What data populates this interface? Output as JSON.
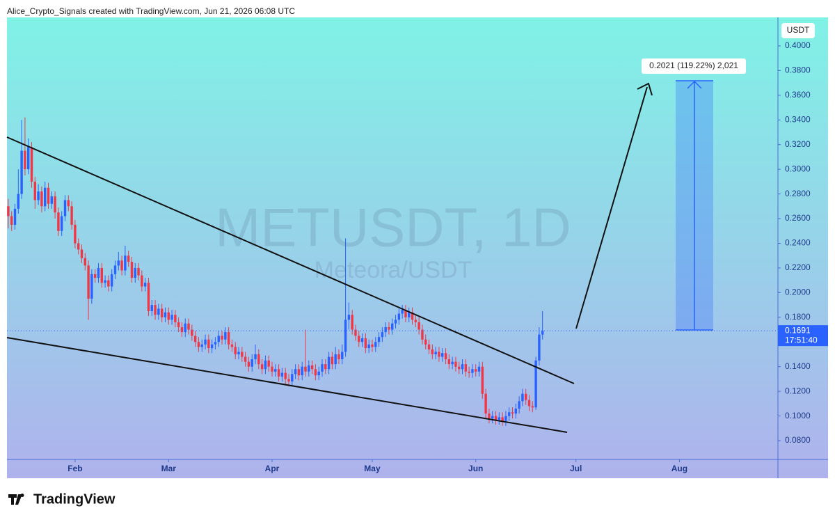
{
  "header": {
    "text": "Alice_Crypto_Signals created with TradingView.com, Jun 21, 2026 06:08 UTC"
  },
  "chart_data": {
    "type": "candlestick",
    "title": "METUSDT, 1D",
    "subtitle": "Meteora/USDT",
    "unit": "USDT",
    "x": [
      11,
      12,
      13,
      14,
      15,
      16,
      17,
      18,
      19,
      20,
      21,
      22,
      23,
      24,
      25,
      26,
      27,
      28,
      29,
      30,
      31,
      32,
      33,
      34,
      35,
      36,
      37,
      38,
      39,
      40,
      41,
      42,
      43,
      44,
      45,
      46,
      47,
      48,
      49,
      50,
      51,
      52,
      53,
      54,
      55,
      56,
      57,
      58,
      59,
      60,
      61,
      62,
      63,
      64,
      65,
      66,
      67,
      68,
      69,
      70,
      71,
      72,
      73,
      74,
      75,
      76,
      77,
      78,
      79,
      80,
      81,
      82,
      83,
      84,
      85,
      86,
      87,
      88,
      89,
      90,
      91,
      92,
      93,
      94,
      95,
      96,
      97,
      98,
      99,
      100,
      101,
      102,
      103,
      104,
      105,
      106,
      107,
      108,
      109,
      110,
      111,
      112,
      113,
      114,
      115,
      116,
      117,
      118,
      119,
      120,
      121,
      122,
      123,
      124,
      125,
      126,
      127,
      128,
      129,
      130,
      131,
      132,
      133,
      134,
      135,
      136,
      137,
      138,
      139,
      140,
      141,
      142,
      143,
      144,
      145,
      146,
      147,
      148,
      149,
      150,
      151,
      152,
      153,
      154,
      155,
      156,
      157,
      158,
      159,
      160,
      161,
      162,
      163,
      164,
      165,
      166,
      167,
      168,
      169,
      170,
      171
    ],
    "ohlc": [
      [
        0.27,
        0.276,
        0.252,
        0.262
      ],
      [
        0.262,
        0.266,
        0.25,
        0.255
      ],
      [
        0.255,
        0.272,
        0.251,
        0.268
      ],
      [
        0.268,
        0.3,
        0.264,
        0.28
      ],
      [
        0.28,
        0.34,
        0.276,
        0.315
      ],
      [
        0.315,
        0.342,
        0.295,
        0.3
      ],
      [
        0.3,
        0.325,
        0.296,
        0.318
      ],
      [
        0.318,
        0.322,
        0.285,
        0.29
      ],
      [
        0.29,
        0.294,
        0.268,
        0.275
      ],
      [
        0.275,
        0.288,
        0.271,
        0.282
      ],
      [
        0.282,
        0.286,
        0.265,
        0.27
      ],
      [
        0.27,
        0.29,
        0.266,
        0.285
      ],
      [
        0.285,
        0.289,
        0.268,
        0.272
      ],
      [
        0.272,
        0.282,
        0.268,
        0.278
      ],
      [
        0.278,
        0.282,
        0.26,
        0.265
      ],
      [
        0.265,
        0.269,
        0.246,
        0.25
      ],
      [
        0.25,
        0.266,
        0.246,
        0.262
      ],
      [
        0.262,
        0.279,
        0.258,
        0.275
      ],
      [
        0.275,
        0.279,
        0.266,
        0.27
      ],
      [
        0.27,
        0.274,
        0.251,
        0.255
      ],
      [
        0.255,
        0.259,
        0.236,
        0.24
      ],
      [
        0.24,
        0.244,
        0.231,
        0.235
      ],
      [
        0.235,
        0.239,
        0.224,
        0.228
      ],
      [
        0.228,
        0.232,
        0.218,
        0.222
      ],
      [
        0.222,
        0.226,
        0.178,
        0.195
      ],
      [
        0.195,
        0.219,
        0.191,
        0.215
      ],
      [
        0.215,
        0.219,
        0.208,
        0.212
      ],
      [
        0.212,
        0.224,
        0.208,
        0.22
      ],
      [
        0.22,
        0.224,
        0.204,
        0.208
      ],
      [
        0.208,
        0.214,
        0.204,
        0.21
      ],
      [
        0.21,
        0.214,
        0.201,
        0.205
      ],
      [
        0.205,
        0.219,
        0.201,
        0.215
      ],
      [
        0.215,
        0.226,
        0.211,
        0.222
      ],
      [
        0.222,
        0.233,
        0.218,
        0.226
      ],
      [
        0.226,
        0.23,
        0.214,
        0.218
      ],
      [
        0.218,
        0.238,
        0.214,
        0.23
      ],
      [
        0.23,
        0.234,
        0.221,
        0.225
      ],
      [
        0.225,
        0.229,
        0.208,
        0.212
      ],
      [
        0.212,
        0.224,
        0.208,
        0.22
      ],
      [
        0.22,
        0.224,
        0.21,
        0.214
      ],
      [
        0.214,
        0.218,
        0.201,
        0.205
      ],
      [
        0.205,
        0.212,
        0.201,
        0.208
      ],
      [
        0.208,
        0.212,
        0.181,
        0.185
      ],
      [
        0.185,
        0.194,
        0.181,
        0.19
      ],
      [
        0.19,
        0.194,
        0.178,
        0.182
      ],
      [
        0.182,
        0.191,
        0.178,
        0.187
      ],
      [
        0.187,
        0.191,
        0.176,
        0.18
      ],
      [
        0.18,
        0.188,
        0.176,
        0.184
      ],
      [
        0.184,
        0.188,
        0.174,
        0.178
      ],
      [
        0.178,
        0.186,
        0.174,
        0.182
      ],
      [
        0.182,
        0.186,
        0.172,
        0.176
      ],
      [
        0.176,
        0.18,
        0.168,
        0.172
      ],
      [
        0.172,
        0.176,
        0.164,
        0.168
      ],
      [
        0.168,
        0.179,
        0.164,
        0.175
      ],
      [
        0.175,
        0.179,
        0.166,
        0.17
      ],
      [
        0.17,
        0.174,
        0.161,
        0.165
      ],
      [
        0.165,
        0.169,
        0.156,
        0.16
      ],
      [
        0.16,
        0.164,
        0.152,
        0.156
      ],
      [
        0.156,
        0.162,
        0.152,
        0.158
      ],
      [
        0.158,
        0.166,
        0.154,
        0.162
      ],
      [
        0.162,
        0.166,
        0.151,
        0.155
      ],
      [
        0.155,
        0.162,
        0.151,
        0.158
      ],
      [
        0.158,
        0.164,
        0.154,
        0.16
      ],
      [
        0.16,
        0.169,
        0.156,
        0.165
      ],
      [
        0.165,
        0.169,
        0.158,
        0.162
      ],
      [
        0.162,
        0.172,
        0.158,
        0.168
      ],
      [
        0.168,
        0.172,
        0.154,
        0.158
      ],
      [
        0.158,
        0.162,
        0.152,
        0.156
      ],
      [
        0.156,
        0.16,
        0.146,
        0.15
      ],
      [
        0.15,
        0.156,
        0.146,
        0.152
      ],
      [
        0.152,
        0.156,
        0.144,
        0.148
      ],
      [
        0.148,
        0.152,
        0.14,
        0.144
      ],
      [
        0.144,
        0.148,
        0.136,
        0.14
      ],
      [
        0.14,
        0.15,
        0.136,
        0.146
      ],
      [
        0.146,
        0.158,
        0.142,
        0.15
      ],
      [
        0.15,
        0.154,
        0.138,
        0.142
      ],
      [
        0.142,
        0.146,
        0.134,
        0.138
      ],
      [
        0.138,
        0.149,
        0.134,
        0.145
      ],
      [
        0.145,
        0.149,
        0.136,
        0.14
      ],
      [
        0.14,
        0.144,
        0.132,
        0.136
      ],
      [
        0.136,
        0.142,
        0.132,
        0.138
      ],
      [
        0.138,
        0.142,
        0.128,
        0.132
      ],
      [
        0.132,
        0.139,
        0.128,
        0.135
      ],
      [
        0.135,
        0.139,
        0.126,
        0.13
      ],
      [
        0.13,
        0.134,
        0.124,
        0.128
      ],
      [
        0.128,
        0.138,
        0.124,
        0.134
      ],
      [
        0.134,
        0.142,
        0.13,
        0.138
      ],
      [
        0.138,
        0.142,
        0.129,
        0.133
      ],
      [
        0.133,
        0.144,
        0.129,
        0.14
      ],
      [
        0.14,
        0.17,
        0.132,
        0.136
      ],
      [
        0.136,
        0.145,
        0.132,
        0.141
      ],
      [
        0.141,
        0.145,
        0.134,
        0.138
      ],
      [
        0.138,
        0.142,
        0.129,
        0.133
      ],
      [
        0.133,
        0.14,
        0.129,
        0.136
      ],
      [
        0.136,
        0.146,
        0.132,
        0.142
      ],
      [
        0.142,
        0.146,
        0.134,
        0.138
      ],
      [
        0.138,
        0.152,
        0.134,
        0.148
      ],
      [
        0.148,
        0.152,
        0.138,
        0.142
      ],
      [
        0.142,
        0.156,
        0.138,
        0.15
      ],
      [
        0.15,
        0.154,
        0.142,
        0.146
      ],
      [
        0.146,
        0.158,
        0.142,
        0.152
      ],
      [
        0.152,
        0.244,
        0.148,
        0.178
      ],
      [
        0.178,
        0.192,
        0.17,
        0.182
      ],
      [
        0.182,
        0.186,
        0.166,
        0.17
      ],
      [
        0.17,
        0.174,
        0.161,
        0.165
      ],
      [
        0.165,
        0.169,
        0.156,
        0.16
      ],
      [
        0.16,
        0.167,
        0.156,
        0.163
      ],
      [
        0.163,
        0.167,
        0.151,
        0.155
      ],
      [
        0.155,
        0.162,
        0.151,
        0.158
      ],
      [
        0.158,
        0.162,
        0.152,
        0.156
      ],
      [
        0.156,
        0.164,
        0.152,
        0.16
      ],
      [
        0.16,
        0.168,
        0.156,
        0.164
      ],
      [
        0.164,
        0.172,
        0.16,
        0.168
      ],
      [
        0.168,
        0.176,
        0.164,
        0.172
      ],
      [
        0.172,
        0.176,
        0.166,
        0.17
      ],
      [
        0.17,
        0.179,
        0.166,
        0.175
      ],
      [
        0.175,
        0.182,
        0.171,
        0.178
      ],
      [
        0.178,
        0.187,
        0.174,
        0.183
      ],
      [
        0.183,
        0.19,
        0.179,
        0.186
      ],
      [
        0.186,
        0.19,
        0.176,
        0.18
      ],
      [
        0.18,
        0.188,
        0.176,
        0.184
      ],
      [
        0.184,
        0.188,
        0.174,
        0.178
      ],
      [
        0.178,
        0.182,
        0.172,
        0.176
      ],
      [
        0.176,
        0.18,
        0.166,
        0.17
      ],
      [
        0.17,
        0.174,
        0.158,
        0.162
      ],
      [
        0.162,
        0.166,
        0.154,
        0.158
      ],
      [
        0.158,
        0.162,
        0.15,
        0.154
      ],
      [
        0.154,
        0.158,
        0.146,
        0.15
      ],
      [
        0.15,
        0.156,
        0.146,
        0.152
      ],
      [
        0.152,
        0.156,
        0.144,
        0.148
      ],
      [
        0.148,
        0.155,
        0.144,
        0.151
      ],
      [
        0.151,
        0.155,
        0.142,
        0.146
      ],
      [
        0.146,
        0.15,
        0.138,
        0.142
      ],
      [
        0.142,
        0.148,
        0.138,
        0.144
      ],
      [
        0.144,
        0.148,
        0.136,
        0.14
      ],
      [
        0.14,
        0.144,
        0.134,
        0.138
      ],
      [
        0.138,
        0.146,
        0.134,
        0.142
      ],
      [
        0.142,
        0.146,
        0.132,
        0.136
      ],
      [
        0.136,
        0.14,
        0.131,
        0.135
      ],
      [
        0.135,
        0.142,
        0.131,
        0.138
      ],
      [
        0.138,
        0.142,
        0.132,
        0.136
      ],
      [
        0.136,
        0.144,
        0.132,
        0.14
      ],
      [
        0.14,
        0.144,
        0.114,
        0.118
      ],
      [
        0.118,
        0.122,
        0.098,
        0.102
      ],
      [
        0.102,
        0.106,
        0.094,
        0.098
      ],
      [
        0.098,
        0.104,
        0.094,
        0.1
      ],
      [
        0.1,
        0.104,
        0.093,
        0.097
      ],
      [
        0.097,
        0.103,
        0.093,
        0.099
      ],
      [
        0.099,
        0.103,
        0.092,
        0.096
      ],
      [
        0.096,
        0.104,
        0.092,
        0.1
      ],
      [
        0.1,
        0.107,
        0.096,
        0.103
      ],
      [
        0.103,
        0.107,
        0.098,
        0.102
      ],
      [
        0.102,
        0.11,
        0.098,
        0.106
      ],
      [
        0.106,
        0.116,
        0.102,
        0.112
      ],
      [
        0.112,
        0.122,
        0.108,
        0.118
      ],
      [
        0.118,
        0.122,
        0.109,
        0.113
      ],
      [
        0.113,
        0.117,
        0.104,
        0.108
      ],
      [
        0.108,
        0.112,
        0.103,
        0.107
      ],
      [
        0.107,
        0.148,
        0.105,
        0.145
      ],
      [
        0.145,
        0.172,
        0.141,
        0.166
      ],
      [
        0.166,
        0.185,
        0.162,
        0.169
      ]
    ],
    "up_color": "#2962ff",
    "down_color": "#f23645",
    "xlim": [
      10.6,
      241.5
    ],
    "xticks": [
      {
        "value": 31,
        "label": "Feb"
      },
      {
        "value": 59,
        "label": "Mar"
      },
      {
        "value": 90,
        "label": "Apr"
      },
      {
        "value": 120,
        "label": "May"
      },
      {
        "value": 151,
        "label": "Jun"
      },
      {
        "value": 181,
        "label": "Jul"
      },
      {
        "value": 212,
        "label": "Aug"
      }
    ],
    "ylim": [
      0.0648,
      0.4231
    ],
    "yticks": [
      {
        "value": 0.08,
        "label": "0.0800"
      },
      {
        "value": 0.1,
        "label": "0.1000"
      },
      {
        "value": 0.12,
        "label": "0.1200"
      },
      {
        "value": 0.14,
        "label": "0.1400"
      },
      {
        "value": 0.18,
        "label": "0.1800"
      },
      {
        "value": 0.2,
        "label": "0.2000"
      },
      {
        "value": 0.22,
        "label": "0.2200"
      },
      {
        "value": 0.24,
        "label": "0.2400"
      },
      {
        "value": 0.26,
        "label": "0.2600"
      },
      {
        "value": 0.28,
        "label": "0.2800"
      },
      {
        "value": 0.3,
        "label": "0.3000"
      },
      {
        "value": 0.32,
        "label": "0.3200"
      },
      {
        "value": 0.34,
        "label": "0.3400"
      },
      {
        "value": 0.36,
        "label": "0.3600"
      },
      {
        "value": 0.38,
        "label": "0.3800"
      },
      {
        "value": 0.4,
        "label": "0.4000"
      }
    ],
    "grid": false,
    "last_price": 0.1691,
    "countdown": "17:51:40",
    "measure_label": "0.2021 (119.22%) 2,021"
  },
  "footer": {
    "logo": "TradingView"
  }
}
